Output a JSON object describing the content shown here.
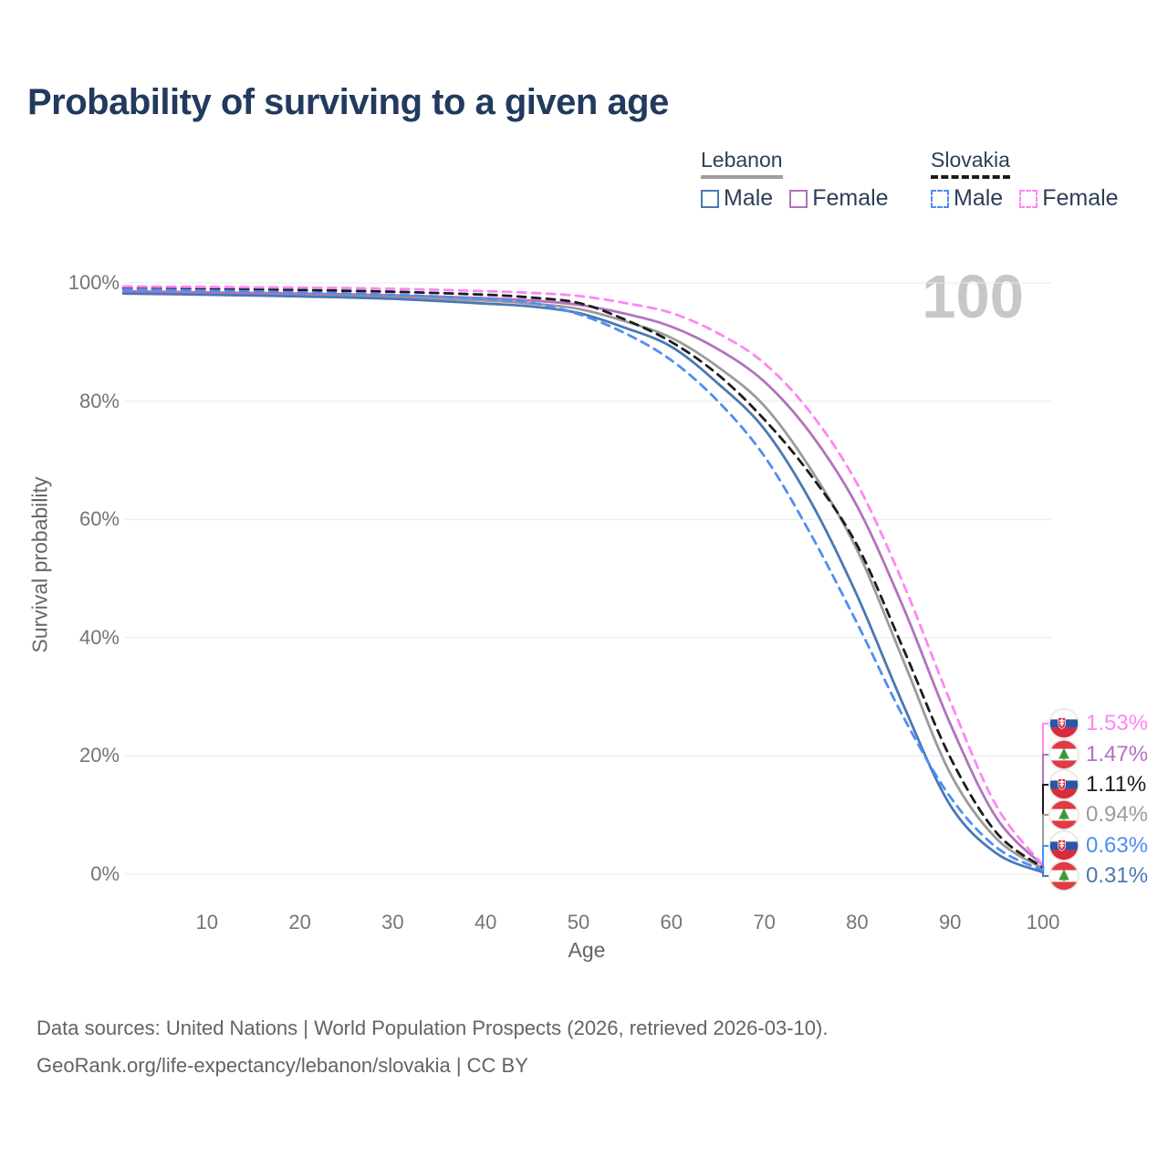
{
  "title": "Probability of surviving to a given age",
  "watermark": "100",
  "legend": {
    "groups": [
      {
        "id": "lebanon",
        "country": "Lebanon",
        "line_style": "solid",
        "underline_color": "#9e9e9e",
        "items": [
          {
            "id": "lebanon-male",
            "label": "Male",
            "color": "#4a78b4",
            "dashed": false
          },
          {
            "id": "lebanon-female",
            "label": "Female",
            "color": "#b173bd",
            "dashed": false
          }
        ]
      },
      {
        "id": "slovakia",
        "country": "Slovakia",
        "line_style": "dashed",
        "underline_color": "#1c1c1c",
        "items": [
          {
            "id": "slovakia-male",
            "label": "Male",
            "color": "#4e8ef2",
            "dashed": true
          },
          {
            "id": "slovakia-female",
            "label": "Female",
            "color": "#fe86f3",
            "dashed": true
          }
        ]
      }
    ]
  },
  "chart_data": {
    "type": "line",
    "title": "Probability of surviving to a given age",
    "xlabel": "Age",
    "ylabel": "Survival probability",
    "xlim": [
      1,
      100
    ],
    "ylim": [
      0,
      100
    ],
    "grid": "horizontal",
    "x_ticks": [
      10,
      20,
      30,
      40,
      50,
      60,
      70,
      80,
      90,
      100
    ],
    "y_ticks": [
      {
        "value": 0,
        "label": "0%"
      },
      {
        "value": 20,
        "label": "20%"
      },
      {
        "value": 40,
        "label": "40%"
      },
      {
        "value": 60,
        "label": "60%"
      },
      {
        "value": 80,
        "label": "80%"
      },
      {
        "value": 100,
        "label": "100%"
      }
    ],
    "x": [
      1,
      10,
      20,
      30,
      40,
      45,
      50,
      55,
      60,
      65,
      70,
      75,
      80,
      85,
      90,
      95,
      100
    ],
    "series": [
      {
        "id": "lebanon-total",
        "name": "Lebanon Total",
        "country": "Lebanon",
        "color": "#9b9b9b",
        "dashed": false,
        "values": [
          98.4,
          98.2,
          98.0,
          97.6,
          97.0,
          96.5,
          95.6,
          93.5,
          90.7,
          85.8,
          79.2,
          68.5,
          54.8,
          36.0,
          17.1,
          6.0,
          0.94
        ]
      },
      {
        "id": "lebanon-female",
        "name": "Lebanon Female",
        "country": "Lebanon",
        "color": "#b173bd",
        "dashed": false,
        "values": [
          98.6,
          98.4,
          98.2,
          97.9,
          97.4,
          97.0,
          96.3,
          94.8,
          92.6,
          88.8,
          83.3,
          74.5,
          62.2,
          45.0,
          25.5,
          9.5,
          1.47
        ]
      },
      {
        "id": "lebanon-male",
        "name": "Lebanon Male",
        "country": "Lebanon",
        "color": "#4a78b4",
        "dashed": false,
        "values": [
          98.2,
          98.0,
          97.7,
          97.3,
          96.5,
          96.0,
          94.9,
          92.4,
          89.2,
          83.0,
          75.3,
          63.0,
          47.1,
          28.5,
          11.7,
          3.5,
          0.31
        ]
      },
      {
        "id": "slovakia-total",
        "name": "Slovakia Total",
        "country": "Slovakia",
        "color": "#1c1c1c",
        "dashed": true,
        "values": [
          99.1,
          99.0,
          98.8,
          98.5,
          98.0,
          97.5,
          96.6,
          93.8,
          90.0,
          84.5,
          76.9,
          67.5,
          55.6,
          38.0,
          19.8,
          7.0,
          1.11
        ]
      },
      {
        "id": "slovakia-male",
        "name": "Slovakia Male",
        "country": "Slovakia",
        "color": "#4e8ef2",
        "dashed": true,
        "values": [
          98.9,
          98.7,
          98.4,
          98.0,
          97.3,
          96.6,
          94.7,
          91.5,
          86.9,
          80.0,
          70.7,
          57.5,
          42.4,
          26.5,
          13.1,
          4.5,
          0.63
        ]
      },
      {
        "id": "slovakia-female",
        "name": "Slovakia Female",
        "country": "Slovakia",
        "color": "#fe86f3",
        "dashed": true,
        "values": [
          99.4,
          99.3,
          99.2,
          99.0,
          98.6,
          98.3,
          97.8,
          96.6,
          94.9,
          91.5,
          86.4,
          78.0,
          66.0,
          49.0,
          29.3,
          11.5,
          1.53
        ]
      }
    ],
    "end_labels": [
      {
        "series": "slovakia-female",
        "flag": "sk",
        "value": "1.53%",
        "color": "#fe86f3"
      },
      {
        "series": "lebanon-female",
        "flag": "lb",
        "value": "1.47%",
        "color": "#b173bd"
      },
      {
        "series": "slovakia-total",
        "flag": "sk",
        "value": "1.11%",
        "color": "#1c1c1c"
      },
      {
        "series": "lebanon-total",
        "flag": "lb",
        "value": "0.94%",
        "color": "#9b9b9b"
      },
      {
        "series": "slovakia-male",
        "flag": "sk",
        "value": "0.63%",
        "color": "#4e8ef2"
      },
      {
        "series": "lebanon-male",
        "flag": "lb",
        "value": "0.31%",
        "color": "#4a78b4"
      }
    ]
  },
  "footer": {
    "line1": "Data sources: United Nations | World Population Prospects (2026, retrieved 2026-03-10).",
    "line2": "GeoRank.org/life-expectancy/lebanon/slovakia | CC BY"
  }
}
